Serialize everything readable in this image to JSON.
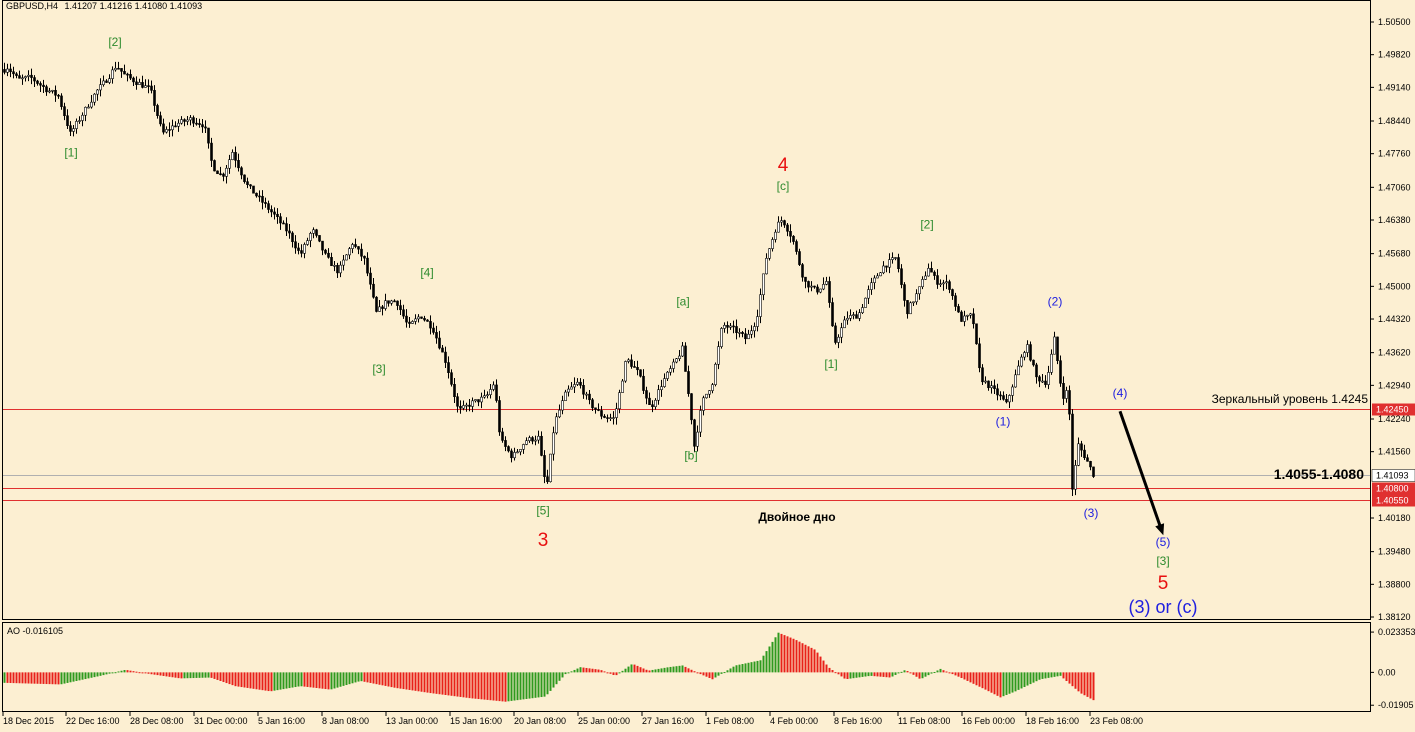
{
  "header": {
    "symbol": "GBPUSD,H4",
    "ohlc": "1.41207 1.41216 1.41080 1.41093",
    "ao_label": "AO -0.016105"
  },
  "colors": {
    "background": "#FCEFD2",
    "bull_candle": "#000000",
    "bear_candle": "#000000",
    "level_line": "#E03030",
    "current_line": "#B0B0B0",
    "ao_up": "#2E9A1E",
    "ao_down": "#E8201A",
    "wave_green": "#2E8B2E",
    "wave_blue": "#2020E0",
    "wave_red": "#E81010"
  },
  "chart_data": {
    "type": "candlestick",
    "symbol": "GBPUSD",
    "timeframe": "H4",
    "ylim": [
      1.3812,
      1.505
    ],
    "y_ticks": [
      "1.50500",
      "1.49820",
      "1.49140",
      "1.48440",
      "1.47760",
      "1.47060",
      "1.46380",
      "1.45680",
      "1.45000",
      "1.44320",
      "1.43620",
      "1.42940",
      "1.42240",
      "1.41560",
      "1.40180",
      "1.39480",
      "1.38800",
      "1.38120"
    ],
    "x_ticks": [
      "18 Dec 2015",
      "22 Dec 16:00",
      "28 Dec 08:00",
      "31 Dec 00:00",
      "5 Jan 16:00",
      "8 Jan 08:00",
      "13 Jan 00:00",
      "15 Jan 16:00",
      "20 Jan 08:00",
      "25 Jan 00:00",
      "27 Jan 16:00",
      "1 Feb 08:00",
      "4 Feb 00:00",
      "8 Feb 16:00",
      "11 Feb 08:00",
      "16 Feb 00:00",
      "18 Feb 16:00",
      "23 Feb 08:00"
    ],
    "price_path": [
      [
        0,
        1.4938
      ],
      [
        6,
        1.4958
      ],
      [
        18,
        1.493
      ],
      [
        30,
        1.4935
      ],
      [
        46,
        1.491
      ],
      [
        58,
        1.4896
      ],
      [
        70,
        1.4818
      ],
      [
        82,
        1.4858
      ],
      [
        96,
        1.4905
      ],
      [
        108,
        1.4935
      ],
      [
        116,
        1.496
      ],
      [
        124,
        1.494
      ],
      [
        136,
        1.4925
      ],
      [
        150,
        1.491
      ],
      [
        162,
        1.4818
      ],
      [
        176,
        1.4838
      ],
      [
        190,
        1.4848
      ],
      [
        204,
        1.4835
      ],
      [
        212,
        1.475
      ],
      [
        222,
        1.4728
      ],
      [
        232,
        1.478
      ],
      [
        246,
        1.4712
      ],
      [
        260,
        1.468
      ],
      [
        274,
        1.4648
      ],
      [
        288,
        1.4612
      ],
      [
        300,
        1.4565
      ],
      [
        312,
        1.4618
      ],
      [
        326,
        1.456
      ],
      [
        338,
        1.453
      ],
      [
        352,
        1.459
      ],
      [
        364,
        1.4555
      ],
      [
        376,
        1.4445
      ],
      [
        386,
        1.4468
      ],
      [
        396,
        1.447
      ],
      [
        408,
        1.4415
      ],
      [
        420,
        1.444
      ],
      [
        432,
        1.4415
      ],
      [
        446,
        1.434
      ],
      [
        458,
        1.424
      ],
      [
        472,
        1.4258
      ],
      [
        486,
        1.427
      ],
      [
        494,
        1.43
      ],
      [
        500,
        1.418
      ],
      [
        512,
        1.4145
      ],
      [
        526,
        1.418
      ],
      [
        538,
        1.4185
      ],
      [
        546,
        1.4075
      ],
      [
        554,
        1.4215
      ],
      [
        566,
        1.428
      ],
      [
        578,
        1.43
      ],
      [
        590,
        1.4255
      ],
      [
        602,
        1.423
      ],
      [
        614,
        1.4225
      ],
      [
        626,
        1.435
      ],
      [
        638,
        1.432
      ],
      [
        650,
        1.4245
      ],
      [
        662,
        1.43
      ],
      [
        674,
        1.434
      ],
      [
        682,
        1.437
      ],
      [
        690,
        1.4245
      ],
      [
        694,
        1.4168
      ],
      [
        702,
        1.426
      ],
      [
        712,
        1.43
      ],
      [
        722,
        1.442
      ],
      [
        734,
        1.441
      ],
      [
        746,
        1.439
      ],
      [
        756,
        1.443
      ],
      [
        766,
        1.456
      ],
      [
        776,
        1.4625
      ],
      [
        782,
        1.464
      ],
      [
        792,
        1.46
      ],
      [
        804,
        1.451
      ],
      [
        816,
        1.449
      ],
      [
        826,
        1.451
      ],
      [
        834,
        1.438
      ],
      [
        846,
        1.4435
      ],
      [
        858,
        1.444
      ],
      [
        870,
        1.45
      ],
      [
        882,
        1.454
      ],
      [
        896,
        1.456
      ],
      [
        906,
        1.4445
      ],
      [
        918,
        1.449
      ],
      [
        928,
        1.454
      ],
      [
        936,
        1.451
      ],
      [
        948,
        1.4505
      ],
      [
        960,
        1.443
      ],
      [
        972,
        1.444
      ],
      [
        980,
        1.431
      ],
      [
        990,
        1.429
      ],
      [
        1000,
        1.427
      ],
      [
        1006,
        1.4255
      ],
      [
        1016,
        1.432
      ],
      [
        1026,
        1.438
      ],
      [
        1036,
        1.431
      ],
      [
        1046,
        1.43
      ],
      [
        1054,
        1.439
      ],
      [
        1062,
        1.427
      ],
      [
        1068,
        1.4285
      ],
      [
        1072,
        1.408
      ],
      [
        1078,
        1.417
      ],
      [
        1086,
        1.414
      ],
      [
        1093,
        1.4109
      ]
    ],
    "horizontal_levels": [
      {
        "price": 1.4245,
        "label": "1.42450",
        "note": "Зеркальный уровень 1.4245"
      },
      {
        "price": 1.4108,
        "label": "1.41093",
        "note": ""
      },
      {
        "price": 1.408,
        "label": "1.40800",
        "note": ""
      },
      {
        "price": 1.4055,
        "label": "1.40550",
        "note": ""
      }
    ],
    "zone_label": "1.4055-1.4080",
    "pattern_label": "Двойное дно",
    "wave_labels": [
      {
        "text": "[2]",
        "color": "green",
        "price_x": 115,
        "price": 1.5
      },
      {
        "text": "[1]",
        "color": "green",
        "price_x": 71,
        "price": 1.477
      },
      {
        "text": "[4]",
        "color": "green",
        "price_x": 427,
        "price": 1.452
      },
      {
        "text": "[3]",
        "color": "green",
        "price_x": 379,
        "price": 1.432
      },
      {
        "text": "[5]",
        "color": "green",
        "price_x": 543,
        "price": 1.4025
      },
      {
        "text": "3",
        "color": "red",
        "price_x": 543,
        "price": 1.396
      },
      {
        "text": "[a]",
        "color": "green",
        "price_x": 683,
        "price": 1.446
      },
      {
        "text": "[b]",
        "color": "green",
        "price_x": 691,
        "price": 1.414
      },
      {
        "text": "4",
        "color": "red",
        "price_x": 783,
        "price": 1.474
      },
      {
        "text": "[c]",
        "color": "green",
        "price_x": 783,
        "price": 1.47
      },
      {
        "text": "[1]",
        "color": "green",
        "price_x": 831,
        "price": 1.433
      },
      {
        "text": "[2]",
        "color": "green",
        "price_x": 927,
        "price": 1.462
      },
      {
        "text": "(2)",
        "color": "blue",
        "price_x": 1055,
        "price": 1.446
      },
      {
        "text": "(1)",
        "color": "blue",
        "price_x": 1003,
        "price": 1.421
      },
      {
        "text": "(3)",
        "color": "blue",
        "price_x": 1091,
        "price": 1.402
      },
      {
        "text": "(4)",
        "color": "blue",
        "price_x": 1120,
        "price": 1.427
      },
      {
        "text": "(5)",
        "color": "blue",
        "price_x": 1163,
        "price": 1.396
      },
      {
        "text": "[3]",
        "color": "green",
        "price_x": 1163,
        "price": 1.392
      },
      {
        "text": "5",
        "color": "red",
        "price_x": 1163,
        "price": 1.387
      },
      {
        "text": "(3) or (c)",
        "color": "blue",
        "price_x": 1163,
        "price": 1.382
      }
    ],
    "projection_arrow": {
      "from_price": 1.424,
      "to_price": 1.399
    },
    "ao": {
      "ylim": [
        -0.0195,
        0.0234
      ],
      "ticks": [
        "0.023353",
        "0.00",
        "-0.01905"
      ],
      "path": [
        [
          0,
          -0.006
        ],
        [
          60,
          -0.007
        ],
        [
          100,
          -0.002
        ],
        [
          125,
          0.0015
        ],
        [
          150,
          -0.001
        ],
        [
          180,
          -0.0035
        ],
        [
          210,
          -0.003
        ],
        [
          235,
          -0.008
        ],
        [
          270,
          -0.011
        ],
        [
          300,
          -0.008
        ],
        [
          330,
          -0.01
        ],
        [
          360,
          -0.005
        ],
        [
          395,
          -0.009
        ],
        [
          430,
          -0.012
        ],
        [
          470,
          -0.015
        ],
        [
          505,
          -0.017
        ],
        [
          545,
          -0.014
        ],
        [
          565,
          -0.001
        ],
        [
          580,
          0.003
        ],
        [
          600,
          0.0015
        ],
        [
          615,
          -0.002
        ],
        [
          632,
          0.005
        ],
        [
          648,
          0.001
        ],
        [
          668,
          0.003
        ],
        [
          682,
          0.004
        ],
        [
          700,
          -0.001
        ],
        [
          712,
          -0.004
        ],
        [
          735,
          0.004
        ],
        [
          760,
          0.007
        ],
        [
          778,
          0.023
        ],
        [
          795,
          0.019
        ],
        [
          815,
          0.013
        ],
        [
          828,
          0.003
        ],
        [
          845,
          -0.004
        ],
        [
          870,
          -0.002
        ],
        [
          890,
          -0.003
        ],
        [
          905,
          0.0015
        ],
        [
          920,
          -0.004
        ],
        [
          940,
          0.002
        ],
        [
          960,
          -0.003
        ],
        [
          985,
          -0.01
        ],
        [
          1000,
          -0.0145
        ],
        [
          1015,
          -0.011
        ],
        [
          1040,
          -0.004
        ],
        [
          1060,
          -0.002
        ],
        [
          1080,
          -0.012
        ],
        [
          1093,
          -0.0161
        ]
      ]
    }
  }
}
